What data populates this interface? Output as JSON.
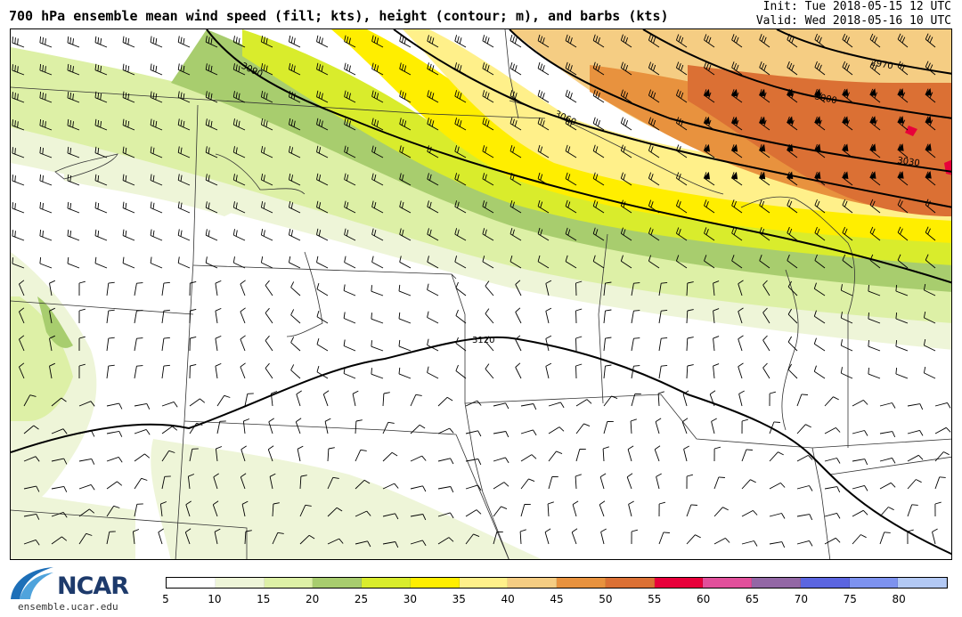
{
  "header": {
    "title": "700 hPa ensemble mean wind speed (fill; kts), height (contour; m), and barbs (kts)",
    "init": "Init: Tue 2018-05-15 12 UTC",
    "valid": "Valid: Wed 2018-05-16 10 UTC"
  },
  "logo": {
    "name": "NCAR",
    "url": "ensemble.ucar.edu"
  },
  "colorbar": {
    "ticks": [
      "5",
      "10",
      "15",
      "20",
      "25",
      "30",
      "35",
      "40",
      "45",
      "50",
      "55",
      "60",
      "65",
      "70",
      "75",
      "80"
    ],
    "colors": [
      "#ffffff",
      "#eef5d8",
      "#ddf0a6",
      "#a8cd6e",
      "#d9ec2c",
      "#ffee00",
      "#fff08a",
      "#f5cd83",
      "#e8923e",
      "#db7034",
      "#e8003a",
      "#e14f9b",
      "#9367a5",
      "#5b65e0",
      "#7d92ef",
      "#b3c9f4"
    ]
  },
  "map": {
    "contour_labels": [
      "3090",
      "3060",
      "2970",
      "3000",
      "3030",
      "3120"
    ],
    "fill_colors": {
      "v10": "#eef5d8",
      "v15": "#ddf0a6",
      "v20": "#a8cd6e",
      "v25": "#d9ec2c",
      "v30": "#ffee00",
      "v35": "#fff08a",
      "v40": "#f5cd83",
      "v45": "#e8923e",
      "v50": "#db7034",
      "v55": "#e8003a"
    }
  }
}
